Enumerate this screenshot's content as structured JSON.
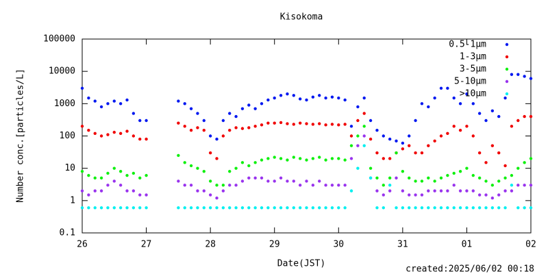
{
  "chart_data": {
    "type": "scatter",
    "title": "Kisokoma",
    "xlabel": "Date(JST)",
    "ylabel": "Number conc.[particles/L]",
    "footnote": "created:2025/06/02 00:18",
    "log_y": true,
    "xlim": [
      0,
      7
    ],
    "xticks": [
      {
        "value": 0,
        "label": "26"
      },
      {
        "value": 1,
        "label": "27"
      },
      {
        "value": 2,
        "label": "28"
      },
      {
        "value": 3,
        "label": "29"
      },
      {
        "value": 4,
        "label": "30"
      },
      {
        "value": 5,
        "label": "31"
      },
      {
        "value": 6,
        "label": "01"
      },
      {
        "value": 7,
        "label": "02"
      }
    ],
    "ylim": [
      0.1,
      100000
    ],
    "yticks": [
      0.1,
      1,
      10,
      100,
      1000,
      10000,
      100000
    ],
    "legend": "upper right",
    "x": [
      0,
      0.1,
      0.2,
      0.3,
      0.4,
      0.5,
      0.6,
      0.7,
      0.8,
      0.9,
      1.0,
      1.5,
      1.6,
      1.7,
      1.8,
      1.9,
      2.0,
      2.1,
      2.2,
      2.3,
      2.4,
      2.5,
      2.6,
      2.7,
      2.8,
      2.9,
      3.0,
      3.1,
      3.2,
      3.3,
      3.4,
      3.5,
      3.6,
      3.7,
      3.8,
      3.9,
      4.0,
      4.1,
      4.2,
      4.3,
      4.4,
      4.5,
      4.6,
      4.7,
      4.8,
      4.9,
      5.0,
      5.1,
      5.2,
      5.3,
      5.4,
      5.5,
      5.6,
      5.7,
      5.8,
      5.9,
      6.0,
      6.1,
      6.2,
      6.3,
      6.4,
      6.5,
      6.6,
      6.7,
      6.8,
      6.9,
      7.0
    ],
    "series": [
      {
        "name": "0.5-1μm",
        "color": "#0018f0",
        "values": [
          3000,
          1500,
          1200,
          800,
          1000,
          1200,
          1000,
          1300,
          500,
          300,
          300,
          1200,
          1000,
          700,
          500,
          300,
          100,
          80,
          300,
          500,
          400,
          700,
          900,
          700,
          1000,
          1300,
          1500,
          1800,
          2000,
          1800,
          1400,
          1300,
          1600,
          1800,
          1500,
          1600,
          1500,
          1300,
          200,
          800,
          1500,
          300,
          150,
          100,
          80,
          70,
          60,
          100,
          300,
          1000,
          800,
          1500,
          3000,
          3000,
          1500,
          1000,
          2000,
          1000,
          500,
          300,
          600,
          400,
          1500,
          8000,
          8000,
          7000,
          6000
        ]
      },
      {
        "name": "1-3μm",
        "color": "#f00000",
        "values": [
          200,
          150,
          120,
          100,
          110,
          130,
          120,
          140,
          100,
          80,
          80,
          250,
          200,
          150,
          180,
          150,
          30,
          20,
          100,
          150,
          180,
          170,
          180,
          200,
          220,
          250,
          250,
          260,
          240,
          230,
          250,
          240,
          230,
          240,
          220,
          230,
          220,
          230,
          100,
          300,
          500,
          80,
          30,
          20,
          20,
          30,
          40,
          50,
          30,
          30,
          50,
          70,
          100,
          120,
          200,
          150,
          200,
          100,
          30,
          15,
          50,
          30,
          12,
          200,
          300,
          400,
          400
        ]
      },
      {
        "name": "3-5μm",
        "color": "#10f010",
        "values": [
          8,
          6,
          5,
          5,
          7,
          10,
          8,
          6,
          7,
          5,
          6,
          25,
          15,
          12,
          10,
          8,
          4,
          3,
          3,
          8,
          10,
          15,
          12,
          15,
          18,
          20,
          22,
          20,
          18,
          22,
          20,
          18,
          20,
          22,
          18,
          20,
          20,
          18,
          50,
          100,
          200,
          10,
          5,
          3,
          5,
          30,
          8,
          5,
          4,
          4,
          5,
          4,
          5,
          6,
          7,
          8,
          10,
          6,
          5,
          4,
          3,
          4,
          5,
          6,
          10,
          15,
          20
        ]
      },
      {
        "name": "5-10μm",
        "color": "#9933ee",
        "values": [
          2,
          1.5,
          2,
          2,
          3,
          4,
          3,
          2,
          2,
          1.5,
          1.5,
          4,
          3,
          3,
          2,
          2,
          1.5,
          1.2,
          2,
          3,
          3,
          4,
          5,
          5,
          5,
          4,
          4,
          5,
          4,
          4,
          3,
          4,
          3,
          4,
          3,
          3,
          3,
          3,
          20,
          50,
          100,
          5,
          2,
          1.5,
          2,
          5,
          2,
          1.5,
          1.5,
          1.5,
          2,
          2,
          2,
          2,
          3,
          2,
          2,
          2,
          1.5,
          1.5,
          1.2,
          1.5,
          2,
          2,
          3,
          3,
          3
        ]
      },
      {
        "name": ">10μm",
        "color": "#00f0f0",
        "values": [
          0.6,
          0.6,
          0.6,
          0.6,
          0.6,
          0.6,
          0.6,
          0.6,
          0.6,
          0.6,
          0.6,
          0.6,
          0.6,
          0.6,
          0.6,
          0.6,
          0.6,
          0.6,
          0.6,
          0.6,
          0.6,
          0.6,
          0.6,
          0.6,
          0.6,
          0.6,
          0.6,
          0.6,
          0.6,
          0.6,
          0.6,
          0.6,
          0.6,
          0.6,
          0.6,
          0.6,
          0.6,
          0.6,
          2,
          10,
          50,
          5,
          0.6,
          0.6,
          3,
          0.6,
          0.6,
          0.6,
          0.6,
          0.6,
          0.6,
          0.6,
          0.6,
          0.6,
          0.6,
          0.6,
          0.6,
          0.6,
          0.6,
          0.6,
          0.6,
          0.6,
          0.6,
          3,
          0.6,
          0.6,
          0.6
        ]
      }
    ]
  }
}
